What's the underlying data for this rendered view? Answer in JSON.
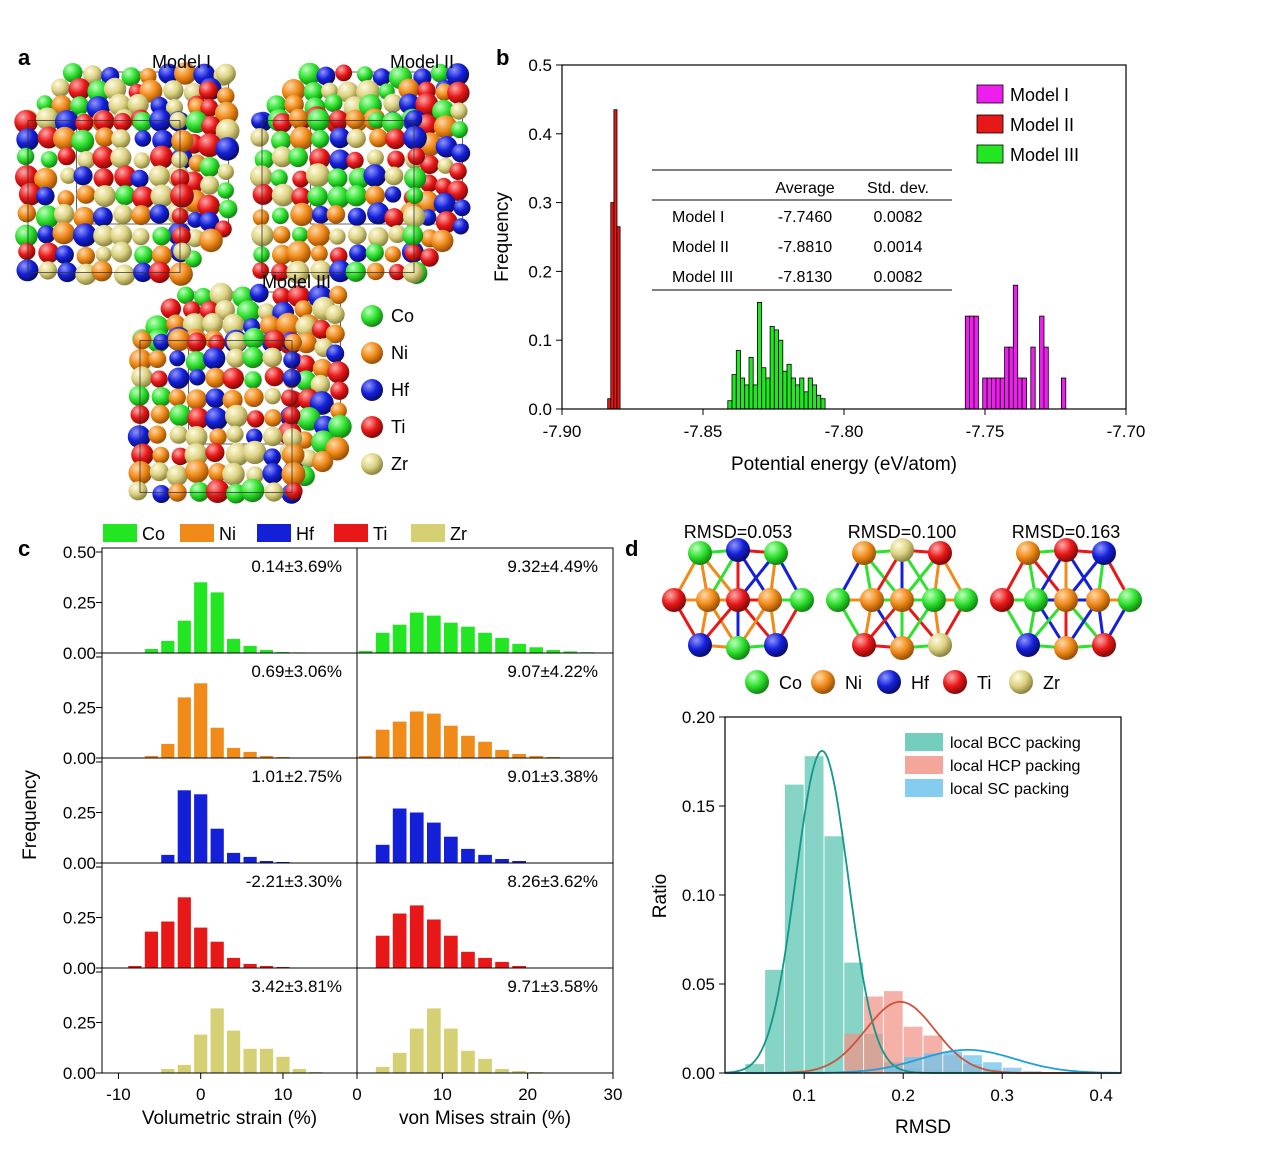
{
  "panel_labels": [
    "a",
    "b",
    "c",
    "d"
  ],
  "panel_a": {
    "model_labels": [
      "Model I",
      "Model II",
      "Model III"
    ],
    "elements": [
      {
        "name": "Co",
        "color": "#2ee12e"
      },
      {
        "name": "Ni",
        "color": "#f08a18"
      },
      {
        "name": "Hf",
        "color": "#1420d8"
      },
      {
        "name": "Ti",
        "color": "#e81818"
      },
      {
        "name": "Zr",
        "color": "#dcd282"
      }
    ]
  },
  "chart_data": [
    {
      "id": "b",
      "type": "bar",
      "xlabel": "Potential energy (eV/atom)",
      "ylabel": "Frequency",
      "xlim": [
        -7.9,
        -7.7
      ],
      "ylim": [
        0,
        0.5
      ],
      "xticks": [
        "-7.90",
        "-7.85",
        "-7.80",
        "-7.75",
        "-7.70"
      ],
      "yticks": [
        "0.0",
        "0.1",
        "0.2",
        "0.3",
        "0.4",
        "0.5"
      ],
      "legend_position": "top-right",
      "series": [
        {
          "name": "Model I",
          "color": "#ee1fee",
          "bin_edges": [
            -7.757,
            -7.7272
          ],
          "bin_width": 0.00155,
          "values": [
            0.135,
            0.135,
            0.135,
            0,
            0.045,
            0.045,
            0.045,
            0.045,
            0.045,
            0.09,
            0.09,
            0.18,
            0.045,
            0.045,
            0,
            0.09,
            0,
            0.135,
            0.09,
            0,
            0,
            0,
            0.045
          ]
        },
        {
          "name": "Model II",
          "color": "#e81818",
          "bin_edges": [
            -7.8838,
            -7.8794
          ],
          "bin_width": 0.0011,
          "values": [
            0.015,
            0.3,
            0.435,
            0.265
          ]
        },
        {
          "name": "Model III",
          "color": "#22e622",
          "bin_edges": [
            -7.8412,
            -7.808
          ],
          "bin_width": 0.0015,
          "values": [
            0.012,
            0.05,
            0.085,
            0.045,
            0.035,
            0.075,
            0.035,
            0.155,
            0.06,
            0.045,
            0.12,
            0.115,
            0.1,
            0.055,
            0.065,
            0.045,
            0.035,
            0.045,
            0.025,
            0.045,
            0.035,
            0.02,
            0.015
          ]
        }
      ],
      "table": {
        "headers": [
          "",
          "Average",
          "Std. dev."
        ],
        "rows": [
          [
            "Model I",
            "-7.7460",
            "0.0082"
          ],
          [
            "Model II",
            "-7.8810",
            "0.0014"
          ],
          [
            "Model III",
            "-7.8130",
            "0.0082"
          ]
        ]
      }
    },
    {
      "id": "c",
      "type": "bar",
      "ylabel": "Frequency",
      "legend": [
        "Co",
        "Ni",
        "Hf",
        "Ti",
        "Zr"
      ],
      "legend_position": "top",
      "yticks": [
        "0.00",
        "0.25",
        "0.50"
      ],
      "ylim": [
        0,
        0.5
      ],
      "columns": [
        {
          "xlabel": "Volumetric strain (%)",
          "xlim": [
            -12,
            19
          ],
          "xticks": [
            "-10",
            "0",
            "10"
          ],
          "xtick_values": [
            -10,
            0,
            10
          ],
          "bin_centers": [
            -8,
            -6,
            -4,
            -2,
            0,
            2,
            4,
            6,
            8,
            10,
            12,
            14,
            16
          ]
        },
        {
          "xlabel": "von Mises strain (%)",
          "xlim": [
            0,
            30
          ],
          "xticks": [
            "0",
            "10",
            "20",
            "30"
          ],
          "xtick_values": [
            0,
            10,
            20,
            30
          ],
          "bin_centers": [
            1,
            3,
            5,
            7,
            9,
            11,
            13,
            15,
            17,
            19,
            21,
            23,
            25,
            27
          ]
        }
      ],
      "rows": [
        {
          "element": "Co",
          "color": "#22e622",
          "vol_label": "0.14±3.69%",
          "vm_label": "9.32±4.49%",
          "vol_values": [
            0,
            0.02,
            0.06,
            0.16,
            0.35,
            0.3,
            0.07,
            0.035,
            0.015,
            0.005,
            0.003,
            0.002,
            0
          ],
          "vm_values": [
            0.01,
            0.1,
            0.14,
            0.2,
            0.185,
            0.15,
            0.13,
            0.1,
            0.075,
            0.045,
            0.028,
            0.015,
            0.008,
            0.004
          ]
        },
        {
          "element": "Ni",
          "color": "#f08a18",
          "vol_label": "0.69±3.06%",
          "vm_label": "9.07±4.22%",
          "vol_values": [
            0,
            0.01,
            0.07,
            0.3,
            0.37,
            0.15,
            0.05,
            0.03,
            0.01,
            0.005,
            0,
            0,
            0
          ],
          "vm_values": [
            0.01,
            0.14,
            0.18,
            0.23,
            0.22,
            0.16,
            0.11,
            0.08,
            0.04,
            0.02,
            0.01,
            0.005,
            0,
            0
          ]
        },
        {
          "element": "Hf",
          "color": "#1420d8",
          "vol_label": "1.01±2.75%",
          "vm_label": "9.01±3.38%",
          "vol_values": [
            0,
            0,
            0.04,
            0.36,
            0.34,
            0.17,
            0.05,
            0.03,
            0.01,
            0.005,
            0,
            0,
            0
          ],
          "vm_values": [
            0,
            0.09,
            0.27,
            0.25,
            0.2,
            0.13,
            0.07,
            0.04,
            0.02,
            0.01,
            0,
            0,
            0,
            0
          ]
        },
        {
          "element": "Ti",
          "color": "#e81818",
          "vol_label": "-2.21±3.30%",
          "vm_label": "8.26±3.62%",
          "vol_values": [
            0.01,
            0.18,
            0.23,
            0.35,
            0.2,
            0.13,
            0.05,
            0.02,
            0.01,
            0.005,
            0,
            0,
            0
          ],
          "vm_values": [
            0,
            0.16,
            0.27,
            0.31,
            0.24,
            0.16,
            0.08,
            0.05,
            0.03,
            0.01,
            0,
            0,
            0,
            0
          ]
        },
        {
          "element": "Zr",
          "color": "#d6d074",
          "vol_label": "3.42±3.81%",
          "vm_label": "9.71±3.58%",
          "vol_values": [
            0,
            0,
            0.02,
            0.04,
            0.19,
            0.32,
            0.21,
            0.12,
            0.12,
            0.08,
            0.02,
            0.005,
            0
          ],
          "vm_values": [
            0,
            0.03,
            0.1,
            0.22,
            0.32,
            0.22,
            0.11,
            0.07,
            0.02,
            0.01,
            0.005,
            0,
            0,
            0
          ]
        }
      ]
    },
    {
      "id": "d",
      "type": "bar",
      "xlabel": "RMSD",
      "ylabel": "Ratio",
      "xlim": [
        0.02,
        0.42
      ],
      "ylim": [
        0,
        0.2
      ],
      "xticks": [
        "0.1",
        "0.2",
        "0.3",
        "0.4"
      ],
      "xtick_values": [
        0.1,
        0.2,
        0.3,
        0.4
      ],
      "yticks": [
        "0.00",
        "0.05",
        "0.10",
        "0.15",
        "0.20"
      ],
      "legend_position": "top-right",
      "bin_width": 0.02,
      "series": [
        {
          "name": "local BCC packing",
          "color": "#5cc6b2",
          "line_color": "#12978a",
          "bin_starts": [
            0.04,
            0.06,
            0.08,
            0.1,
            0.12,
            0.14,
            0.16,
            0.18,
            0.2,
            0.22,
            0.24,
            0.26
          ],
          "values": [
            0.005,
            0.058,
            0.162,
            0.178,
            0.133,
            0.062,
            0.022,
            0.006,
            0.003,
            0.002,
            0.001,
            0.001
          ],
          "fit": {
            "mean": 0.118,
            "sd": 0.0265,
            "peak": 0.181
          }
        },
        {
          "name": "local HCP packing",
          "color": "#f2968a",
          "line_color": "#c8553f",
          "bin_starts": [
            0.14,
            0.16,
            0.18,
            0.2,
            0.22,
            0.24,
            0.26,
            0.28
          ],
          "values": [
            0.022,
            0.043,
            0.046,
            0.026,
            0.021,
            0.01,
            0.005,
            0.002
          ],
          "fit": {
            "mean": 0.197,
            "sd": 0.035,
            "peak": 0.04
          }
        },
        {
          "name": "local SC packing",
          "color": "#6ec4ee",
          "line_color": "#1ea0d8",
          "bin_starts": [
            0.18,
            0.2,
            0.22,
            0.24,
            0.26,
            0.28,
            0.3,
            0.32
          ],
          "values": [
            0.003,
            0.009,
            0.011,
            0.012,
            0.01,
            0.006,
            0.003,
            0.001
          ],
          "fit": {
            "mean": 0.265,
            "sd": 0.048,
            "peak": 0.013
          }
        }
      ],
      "rmsd_labels": [
        "RMSD=0.053",
        "RMSD=0.100",
        "RMSD=0.163"
      ],
      "element_legend": [
        {
          "name": "Co",
          "color": "#2ee12e"
        },
        {
          "name": "Ni",
          "color": "#f08a18"
        },
        {
          "name": "Hf",
          "color": "#1420d8"
        },
        {
          "name": "Ti",
          "color": "#e81818"
        },
        {
          "name": "Zr",
          "color": "#dcd282"
        }
      ]
    }
  ]
}
